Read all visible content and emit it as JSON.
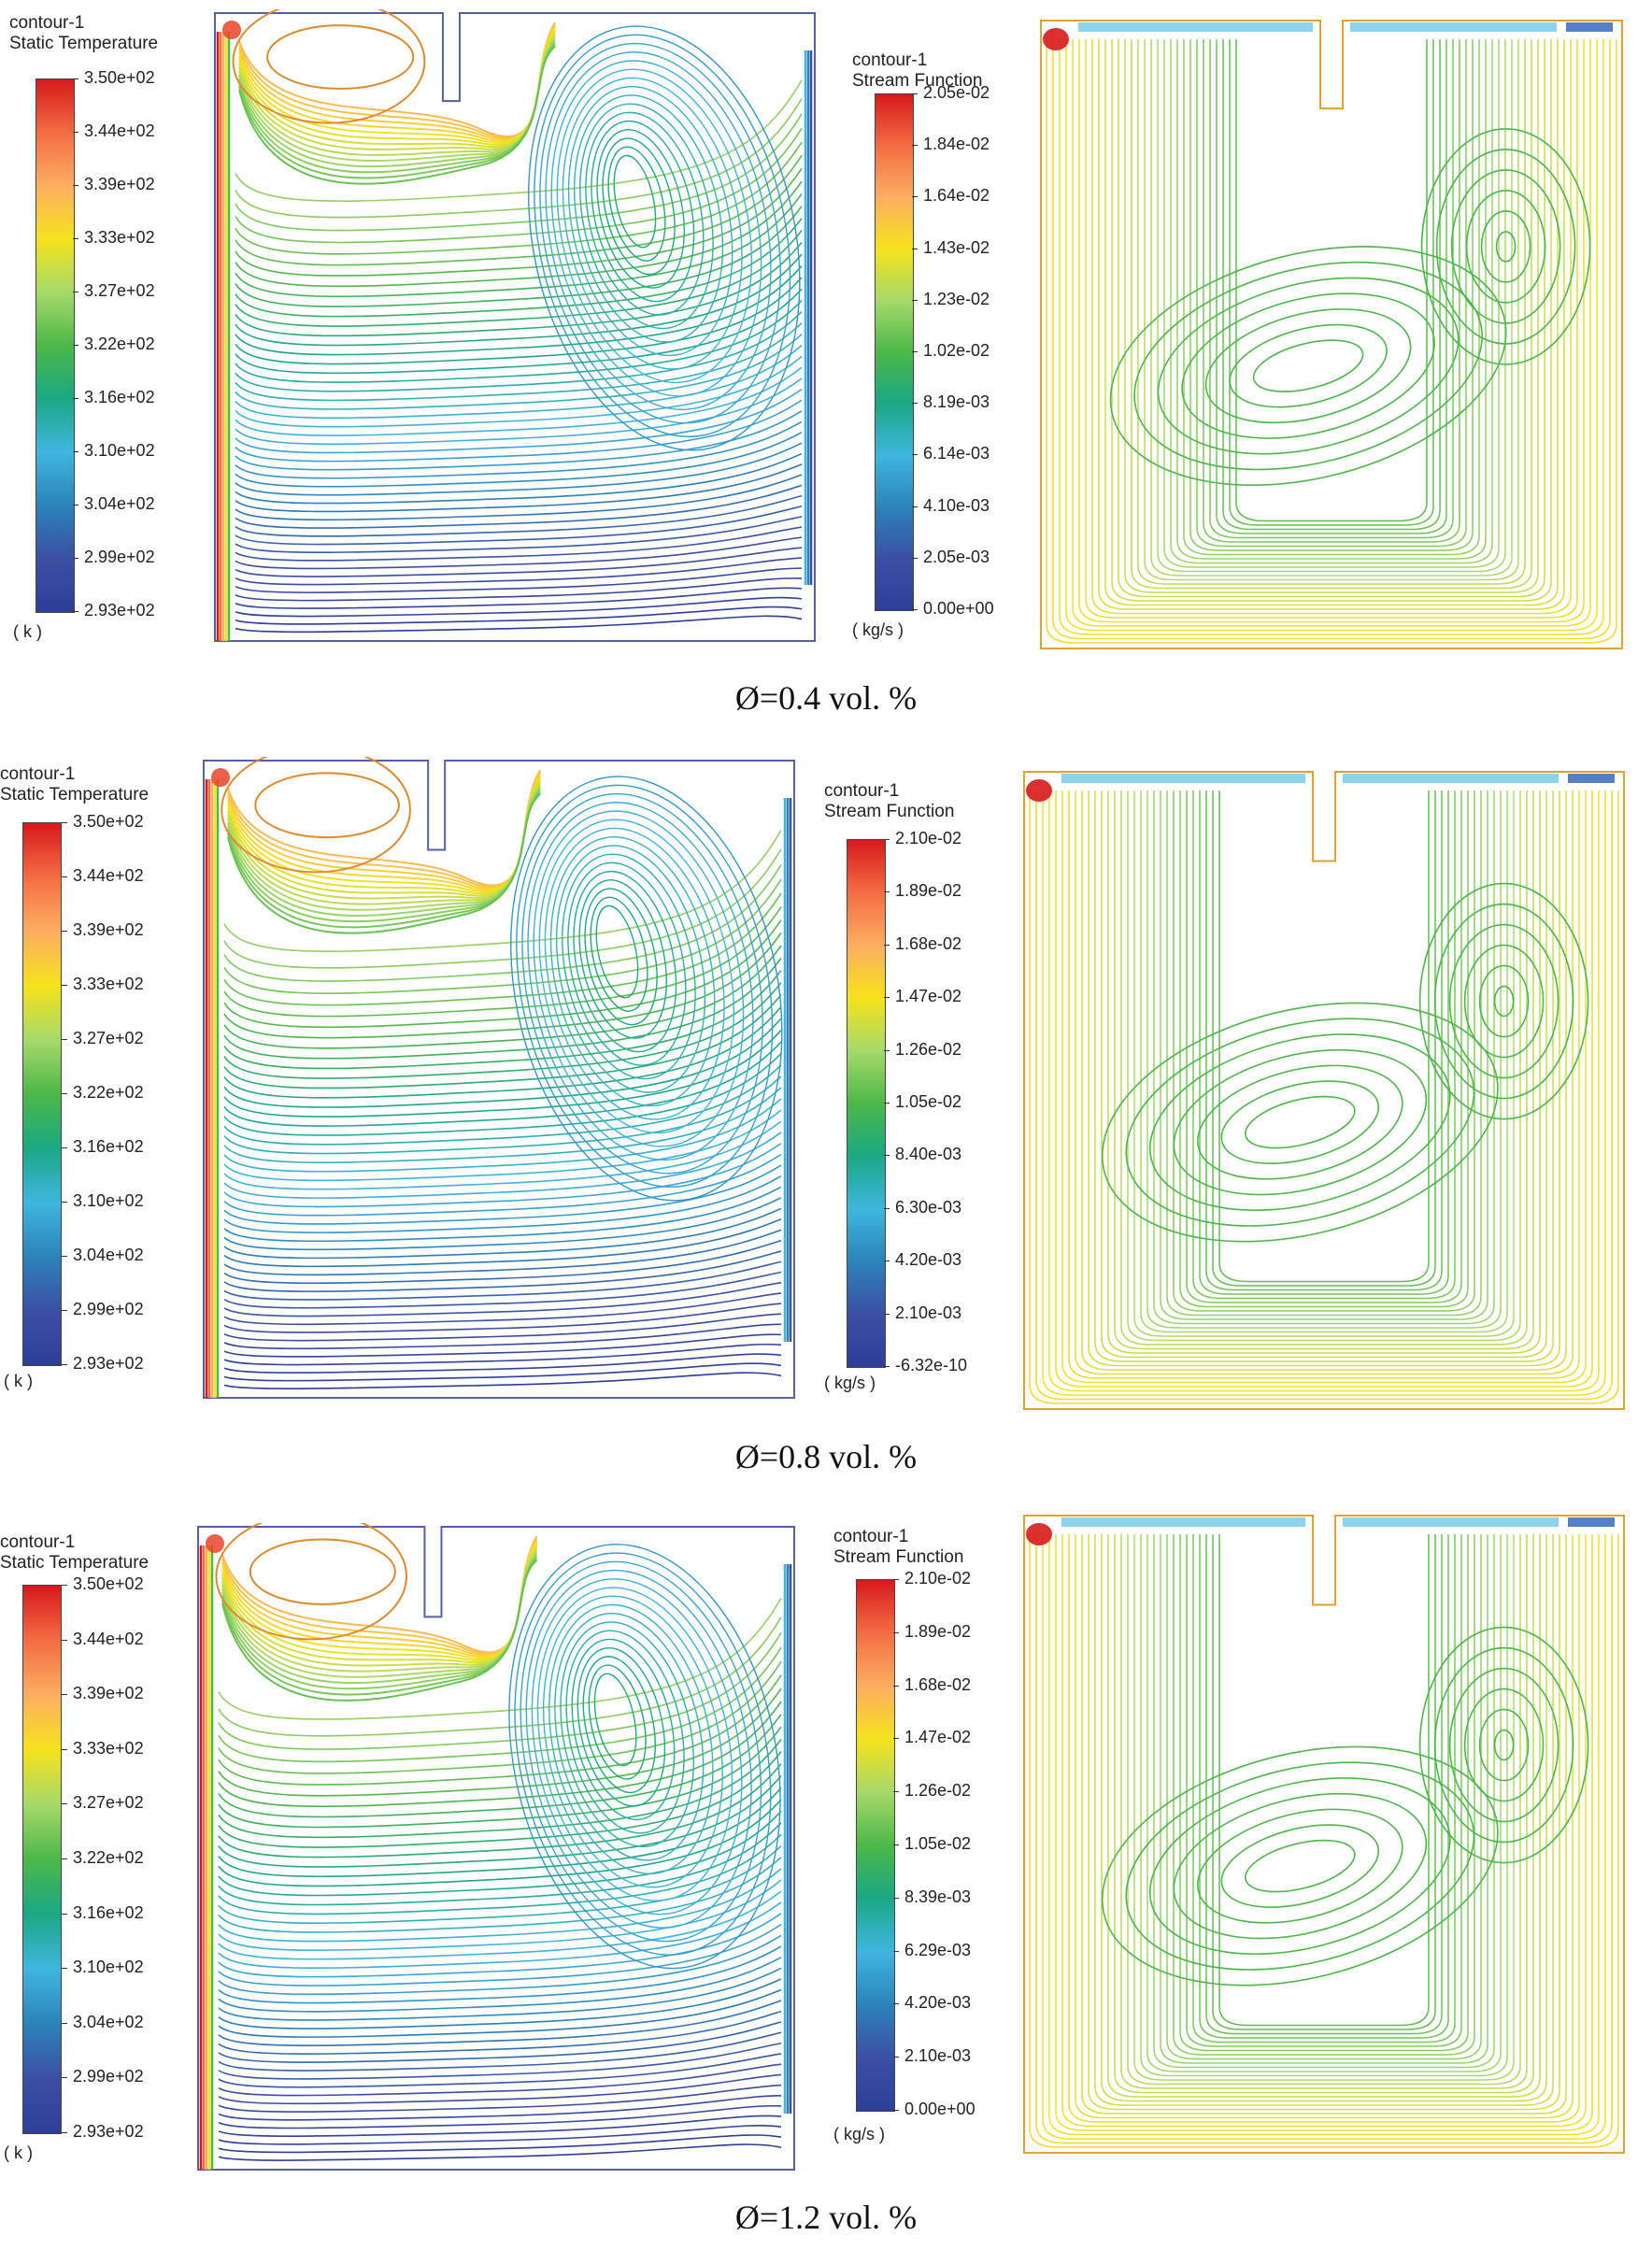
{
  "rows": [
    {
      "caption": "Ø=0.4 vol. %",
      "temperature": {
        "title": "contour-1",
        "subtitle": "Static Temperature",
        "unit": "( k )",
        "ticks": [
          "3.50e+02",
          "3.44e+02",
          "3.39e+02",
          "3.33e+02",
          "3.27e+02",
          "3.22e+02",
          "3.16e+02",
          "3.10e+02",
          "3.04e+02",
          "2.99e+02",
          "2.93e+02"
        ]
      },
      "stream": {
        "title": "contour-1",
        "subtitle": "Stream Function",
        "unit": "( kg/s )",
        "ticks": [
          "2.05e-02",
          "1.84e-02",
          "1.64e-02",
          "1.43e-02",
          "1.23e-02",
          "1.02e-02",
          "8.19e-03",
          "6.14e-03",
          "4.10e-03",
          "2.05e-03",
          "0.00e+00"
        ]
      }
    },
    {
      "caption": "Ø=0.8 vol. %",
      "temperature": {
        "title": "contour-1",
        "subtitle": "Static Temperature",
        "unit": "( k )",
        "ticks": [
          "3.50e+02",
          "3.44e+02",
          "3.39e+02",
          "3.33e+02",
          "3.27e+02",
          "3.22e+02",
          "3.16e+02",
          "3.10e+02",
          "3.04e+02",
          "2.99e+02",
          "2.93e+02"
        ]
      },
      "stream": {
        "title": "contour-1",
        "subtitle": "Stream Function",
        "unit": "( kg/s )",
        "ticks": [
          "2.10e-02",
          "1.89e-02",
          "1.68e-02",
          "1.47e-02",
          "1.26e-02",
          "1.05e-02",
          "8.40e-03",
          "6.30e-03",
          "4.20e-03",
          "2.10e-03",
          "-6.32e-10"
        ]
      }
    },
    {
      "caption": "Ø=1.2 vol. %",
      "temperature": {
        "title": "contour-1",
        "subtitle": "Static Temperature",
        "unit": "( k )",
        "ticks": [
          "3.50e+02",
          "3.44e+02",
          "3.39e+02",
          "3.33e+02",
          "3.27e+02",
          "3.22e+02",
          "3.16e+02",
          "3.10e+02",
          "3.04e+02",
          "2.99e+02",
          "2.93e+02"
        ]
      },
      "stream": {
        "title": "contour-1",
        "subtitle": "Stream Function",
        "unit": "( kg/s )",
        "ticks": [
          "2.10e-02",
          "1.89e-02",
          "1.68e-02",
          "1.47e-02",
          "1.26e-02",
          "1.05e-02",
          "8.39e-03",
          "6.29e-03",
          "4.20e-03",
          "2.10e-03",
          "0.00e+00"
        ]
      }
    }
  ],
  "colormap": [
    "#d7191c",
    "#f46d43",
    "#fdae61",
    "#f5e31b",
    "#a6d96a",
    "#4cb848",
    "#1aa884",
    "#3fb6e0",
    "#2b83ba",
    "#3c4fa3",
    "#2d3e9a"
  ]
}
